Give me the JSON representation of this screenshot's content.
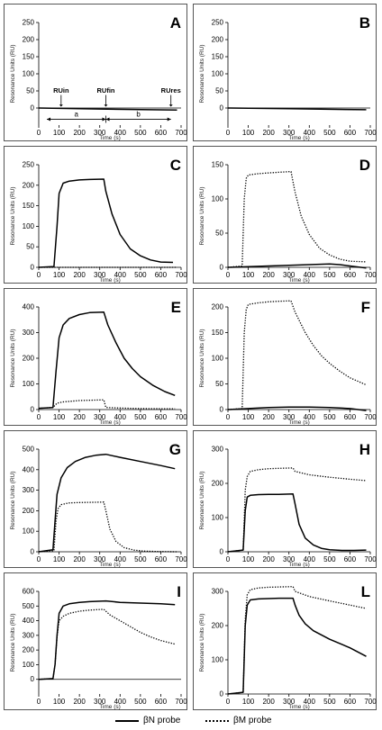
{
  "chart_data": [
    {
      "type": "line",
      "panel_label": "A",
      "xlabel": "Time (s)",
      "ylabel": "Resonance Units (RU)",
      "xlim": [
        0,
        700
      ],
      "ylim": [
        -50,
        250
      ],
      "xticks": [
        0,
        100,
        200,
        300,
        400,
        500,
        600,
        700
      ],
      "yticks": [
        0,
        50,
        100,
        150,
        200,
        250
      ],
      "annotations": [
        "RUin",
        "RUfin",
        "RUres",
        "a",
        "b"
      ],
      "series": [
        {
          "name": "βN probe",
          "style": "solid",
          "x": [
            0,
            300,
            680
          ],
          "y": [
            0,
            -3,
            -6
          ]
        }
      ]
    },
    {
      "type": "line",
      "panel_label": "B",
      "xlabel": "Time (s)",
      "ylabel": "Resonance Units (RU)",
      "xlim": [
        0,
        700
      ],
      "ylim": [
        -50,
        250
      ],
      "xticks": [
        0,
        100,
        200,
        300,
        400,
        500,
        600,
        700
      ],
      "yticks": [
        0,
        50,
        100,
        150,
        200,
        250
      ],
      "series": [
        {
          "name": "βN probe",
          "style": "solid",
          "x": [
            0,
            300,
            680
          ],
          "y": [
            0,
            -2,
            -5
          ]
        }
      ]
    },
    {
      "type": "line",
      "panel_label": "C",
      "xlabel": "Time (s)",
      "ylabel": "Resonance Units (RU)",
      "xlim": [
        0,
        700
      ],
      "ylim": [
        0,
        250
      ],
      "xticks": [
        0,
        100,
        200,
        300,
        400,
        500,
        600,
        700
      ],
      "yticks": [
        0,
        50,
        100,
        150,
        200,
        250
      ],
      "series": [
        {
          "name": "βN probe",
          "style": "solid",
          "x": [
            0,
            75,
            90,
            100,
            120,
            150,
            200,
            250,
            320,
            330,
            360,
            400,
            450,
            500,
            550,
            600,
            660
          ],
          "y": [
            0,
            2,
            100,
            180,
            205,
            210,
            213,
            214,
            215,
            185,
            130,
            80,
            45,
            28,
            18,
            13,
            12
          ]
        },
        {
          "name": "βM probe",
          "style": "dotted",
          "x": [
            0,
            320,
            680
          ],
          "y": [
            0,
            0,
            0
          ]
        }
      ]
    },
    {
      "type": "line",
      "panel_label": "D",
      "xlabel": "Time (s)",
      "ylabel": "Resonance Units (RU)",
      "xlim": [
        0,
        700
      ],
      "ylim": [
        0,
        150
      ],
      "xticks": [
        0,
        100,
        200,
        300,
        400,
        500,
        600,
        700
      ],
      "yticks": [
        0,
        50,
        100,
        150
      ],
      "series": [
        {
          "name": "βM probe",
          "style": "dotted",
          "x": [
            0,
            70,
            80,
            90,
            100,
            150,
            200,
            250,
            310,
            330,
            360,
            400,
            450,
            500,
            550,
            600,
            680
          ],
          "y": [
            0,
            2,
            100,
            130,
            135,
            137,
            138,
            139,
            140,
            110,
            75,
            48,
            28,
            18,
            12,
            9,
            8
          ]
        },
        {
          "name": "βN probe",
          "style": "solid",
          "x": [
            0,
            100,
            200,
            300,
            400,
            500,
            550,
            600,
            680
          ],
          "y": [
            0,
            1,
            2,
            3,
            4,
            5,
            4,
            2,
            -1
          ]
        }
      ]
    },
    {
      "type": "line",
      "panel_label": "E",
      "xlabel": "Time (s)",
      "ylabel": "Resonance Units (RU)",
      "xlim": [
        0,
        700
      ],
      "ylim": [
        0,
        400
      ],
      "xticks": [
        0,
        100,
        200,
        300,
        400,
        500,
        600,
        700
      ],
      "yticks": [
        0,
        100,
        200,
        300,
        400
      ],
      "series": [
        {
          "name": "βN probe",
          "style": "solid",
          "x": [
            0,
            70,
            85,
            100,
            120,
            150,
            200,
            250,
            320,
            340,
            380,
            420,
            460,
            500,
            560,
            620,
            670
          ],
          "y": [
            5,
            8,
            150,
            280,
            330,
            355,
            370,
            378,
            380,
            330,
            260,
            200,
            160,
            128,
            95,
            70,
            55
          ]
        },
        {
          "name": "βM probe",
          "style": "dotted",
          "x": [
            0,
            70,
            90,
            120,
            200,
            320,
            330,
            400,
            500,
            600,
            670
          ],
          "y": [
            5,
            8,
            25,
            30,
            35,
            38,
            8,
            6,
            4,
            3,
            3
          ]
        }
      ]
    },
    {
      "type": "line",
      "panel_label": "F",
      "xlabel": "Time (s)",
      "ylabel": "Resonance Units (RU)",
      "xlim": [
        0,
        700
      ],
      "ylim": [
        0,
        200
      ],
      "xticks": [
        0,
        100,
        200,
        300,
        400,
        500,
        600,
        700
      ],
      "yticks": [
        0,
        50,
        100,
        150,
        200
      ],
      "series": [
        {
          "name": "βM probe",
          "style": "dotted",
          "x": [
            0,
            70,
            80,
            90,
            100,
            150,
            200,
            250,
            310,
            330,
            380,
            420,
            460,
            500,
            550,
            600,
            680
          ],
          "y": [
            0,
            2,
            150,
            195,
            205,
            208,
            210,
            211,
            212,
            190,
            150,
            125,
            105,
            90,
            75,
            62,
            48
          ]
        },
        {
          "name": "βN probe",
          "style": "solid",
          "x": [
            0,
            100,
            200,
            300,
            400,
            500,
            600,
            680
          ],
          "y": [
            0,
            2,
            4,
            5,
            5,
            4,
            2,
            -2
          ]
        }
      ]
    },
    {
      "type": "line",
      "panel_label": "G",
      "xlabel": "Time (s)",
      "ylabel": "Resonance Units (RU)",
      "xlim": [
        0,
        700
      ],
      "ylim": [
        0,
        500
      ],
      "xticks": [
        0,
        100,
        200,
        300,
        400,
        500,
        600,
        700
      ],
      "yticks": [
        0,
        100,
        200,
        300,
        400,
        500
      ],
      "series": [
        {
          "name": "βN probe",
          "style": "solid",
          "x": [
            0,
            70,
            80,
            90,
            110,
            140,
            180,
            230,
            280,
            330,
            400,
            500,
            600,
            670
          ],
          "y": [
            0,
            10,
            150,
            280,
            360,
            410,
            440,
            460,
            470,
            475,
            460,
            440,
            420,
            405
          ]
        },
        {
          "name": "βM probe",
          "style": "dotted",
          "x": [
            0,
            75,
            85,
            95,
            110,
            150,
            200,
            250,
            320,
            330,
            350,
            380,
            420,
            470,
            520,
            600,
            680
          ],
          "y": [
            0,
            5,
            150,
            210,
            230,
            238,
            240,
            241,
            242,
            200,
            110,
            50,
            20,
            8,
            3,
            1,
            0
          ]
        }
      ]
    },
    {
      "type": "line",
      "panel_label": "H",
      "xlabel": "Time (s)",
      "ylabel": "Resonance Units (RU)",
      "xlim": [
        0,
        700
      ],
      "ylim": [
        0,
        300
      ],
      "xticks": [
        0,
        100,
        200,
        300,
        400,
        500,
        600,
        700
      ],
      "yticks": [
        0,
        100,
        200,
        300
      ],
      "series": [
        {
          "name": "βM probe",
          "style": "dotted",
          "x": [
            0,
            75,
            85,
            95,
            110,
            150,
            200,
            250,
            320,
            330,
            400,
            500,
            600,
            680
          ],
          "y": [
            0,
            5,
            180,
            220,
            235,
            240,
            243,
            244,
            245,
            235,
            225,
            218,
            212,
            208
          ]
        },
        {
          "name": "βN probe",
          "style": "solid",
          "x": [
            0,
            75,
            85,
            95,
            110,
            150,
            200,
            250,
            320,
            330,
            350,
            380,
            420,
            460,
            500,
            560,
            620,
            680
          ],
          "y": [
            0,
            5,
            120,
            160,
            165,
            167,
            168,
            168,
            169,
            140,
            80,
            40,
            20,
            10,
            6,
            4,
            4,
            5
          ]
        }
      ]
    },
    {
      "type": "line",
      "panel_label": "I",
      "xlabel": "Time (s)",
      "ylabel": "Resonance Units (RU)",
      "xlim": [
        0,
        700
      ],
      "ylim": [
        -100,
        600
      ],
      "xticks": [
        0,
        100,
        200,
        300,
        400,
        500,
        600,
        700
      ],
      "yticks": [
        0,
        100,
        200,
        300,
        400,
        500,
        600
      ],
      "series": [
        {
          "name": "βN probe",
          "style": "solid",
          "x": [
            0,
            70,
            80,
            90,
            100,
            120,
            150,
            200,
            250,
            330,
            400,
            500,
            600,
            670
          ],
          "y": [
            0,
            5,
            100,
            300,
            450,
            500,
            515,
            525,
            530,
            535,
            525,
            520,
            515,
            510
          ]
        },
        {
          "name": "βM probe",
          "style": "dotted",
          "x": [
            0,
            70,
            80,
            90,
            100,
            120,
            150,
            200,
            250,
            320,
            350,
            400,
            450,
            500,
            550,
            600,
            670
          ],
          "y": [
            0,
            5,
            100,
            290,
            400,
            430,
            450,
            465,
            472,
            478,
            440,
            400,
            360,
            320,
            290,
            265,
            240
          ]
        }
      ]
    },
    {
      "type": "line",
      "panel_label": "L",
      "xlabel": "Time (s)",
      "ylabel": "Resonance Units (RU)",
      "xlim": [
        0,
        700
      ],
      "ylim": [
        0,
        300
      ],
      "xticks": [
        0,
        100,
        200,
        300,
        400,
        500,
        600,
        700
      ],
      "yticks": [
        0,
        100,
        200,
        300
      ],
      "series": [
        {
          "name": "βM probe",
          "style": "dotted",
          "x": [
            0,
            75,
            85,
            95,
            110,
            150,
            200,
            250,
            320,
            330,
            400,
            500,
            600,
            680
          ],
          "y": [
            0,
            5,
            220,
            290,
            305,
            310,
            312,
            313,
            314,
            300,
            285,
            272,
            260,
            250
          ]
        },
        {
          "name": "βN probe",
          "style": "solid",
          "x": [
            0,
            75,
            85,
            95,
            110,
            150,
            200,
            250,
            320,
            330,
            350,
            380,
            420,
            500,
            600,
            680
          ],
          "y": [
            0,
            5,
            200,
            260,
            275,
            278,
            279,
            280,
            280,
            260,
            230,
            205,
            185,
            160,
            135,
            110
          ]
        }
      ]
    }
  ],
  "legend": {
    "solid_label": "βN probe",
    "dotted_label": "βM probe"
  }
}
